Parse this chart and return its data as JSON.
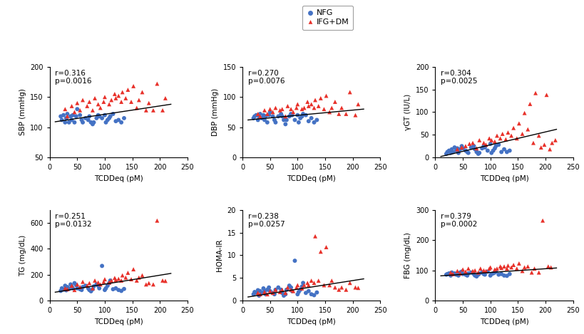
{
  "legend_labels": [
    "NFG",
    "IFG+DM"
  ],
  "nfg_color": "#4472C4",
  "ifg_color": "#E8312A",
  "xlabel": "TCDDeq (pM)",
  "subplots": [
    {
      "ylabel": "SBP (mmHg)",
      "r_str": "r=0.316",
      "p_str": "p=0.0016",
      "ylim": [
        50,
        200
      ],
      "yticks": [
        50,
        100,
        150,
        200
      ],
      "xlim": [
        0,
        250
      ],
      "xticks": [
        0,
        50,
        100,
        150,
        200,
        250
      ],
      "nfg_x": [
        20,
        22,
        25,
        28,
        30,
        32,
        35,
        38,
        40,
        42,
        45,
        48,
        50,
        55,
        58,
        60,
        65,
        70,
        72,
        75,
        78,
        80,
        85,
        88,
        90,
        95,
        100,
        102,
        105,
        108,
        110,
        115,
        120,
        125,
        130,
        135
      ],
      "nfg_y": [
        118,
        112,
        120,
        108,
        115,
        122,
        108,
        118,
        112,
        120,
        108,
        118,
        130,
        120,
        112,
        108,
        115,
        112,
        118,
        108,
        105,
        108,
        115,
        120,
        118,
        115,
        120,
        108,
        112,
        115,
        118,
        122,
        110,
        112,
        108,
        115
      ],
      "ifg_x": [
        28,
        32,
        40,
        45,
        50,
        55,
        60,
        68,
        72,
        78,
        82,
        88,
        92,
        98,
        100,
        108,
        112,
        118,
        120,
        125,
        130,
        132,
        138,
        142,
        148,
        152,
        158,
        162,
        168,
        175,
        180,
        188,
        195,
        205,
        210
      ],
      "ifg_y": [
        130,
        118,
        135,
        125,
        140,
        128,
        145,
        135,
        142,
        128,
        148,
        138,
        132,
        142,
        150,
        138,
        145,
        155,
        148,
        152,
        142,
        158,
        148,
        162,
        142,
        168,
        132,
        145,
        158,
        128,
        140,
        128,
        172,
        128,
        148
      ],
      "fit_x": [
        10,
        220
      ],
      "fit_y": [
        109,
        138
      ]
    },
    {
      "ylabel": "DBP (mmHg)",
      "r_str": "r=0.270",
      "p_str": "p=0.0076",
      "ylim": [
        0,
        150
      ],
      "yticks": [
        0,
        50,
        100,
        150
      ],
      "xlim": [
        0,
        250
      ],
      "xticks": [
        0,
        50,
        100,
        150,
        200,
        250
      ],
      "nfg_x": [
        20,
        22,
        25,
        28,
        30,
        32,
        35,
        38,
        40,
        42,
        45,
        48,
        50,
        55,
        58,
        60,
        65,
        70,
        72,
        75,
        78,
        80,
        85,
        88,
        90,
        95,
        100,
        102,
        105,
        108,
        110,
        115,
        120,
        125,
        130,
        135
      ],
      "nfg_y": [
        65,
        68,
        70,
        62,
        68,
        72,
        65,
        70,
        62,
        68,
        58,
        70,
        75,
        68,
        62,
        58,
        68,
        72,
        68,
        62,
        55,
        62,
        68,
        72,
        70,
        62,
        70,
        58,
        65,
        68,
        72,
        70,
        60,
        65,
        58,
        62
      ],
      "ifg_x": [
        28,
        32,
        40,
        45,
        50,
        55,
        60,
        68,
        72,
        78,
        82,
        88,
        92,
        98,
        100,
        108,
        112,
        118,
        120,
        125,
        130,
        132,
        138,
        142,
        148,
        152,
        158,
        162,
        168,
        175,
        180,
        188,
        195,
        205,
        210
      ],
      "ifg_y": [
        72,
        68,
        78,
        72,
        80,
        75,
        82,
        78,
        80,
        68,
        85,
        80,
        75,
        82,
        88,
        80,
        82,
        92,
        85,
        88,
        82,
        95,
        85,
        98,
        80,
        102,
        75,
        82,
        92,
        72,
        82,
        72,
        108,
        70,
        88
      ],
      "fit_x": [
        10,
        220
      ],
      "fit_y": [
        62,
        80
      ]
    },
    {
      "ylabel": "γGT (IU/L)",
      "r_str": "r=0.304",
      "p_str": "p=0.0025",
      "ylim": [
        0,
        200
      ],
      "yticks": [
        0,
        50,
        100,
        150,
        200
      ],
      "xlim": [
        0,
        250
      ],
      "xticks": [
        0,
        50,
        100,
        150,
        200,
        250
      ],
      "nfg_x": [
        20,
        22,
        25,
        28,
        30,
        32,
        35,
        38,
        40,
        42,
        45,
        48,
        50,
        55,
        58,
        60,
        65,
        70,
        72,
        75,
        78,
        80,
        85,
        88,
        90,
        95,
        100,
        102,
        105,
        108,
        110,
        115,
        120,
        125,
        130,
        135
      ],
      "nfg_y": [
        8,
        12,
        15,
        10,
        18,
        12,
        22,
        15,
        20,
        10,
        18,
        25,
        20,
        15,
        12,
        10,
        22,
        25,
        18,
        12,
        8,
        10,
        20,
        25,
        22,
        15,
        30,
        10,
        15,
        20,
        25,
        28,
        12,
        18,
        12,
        15
      ],
      "ifg_x": [
        40,
        48,
        55,
        62,
        68,
        75,
        80,
        88,
        92,
        98,
        102,
        108,
        112,
        118,
        122,
        128,
        132,
        138,
        142,
        148,
        152,
        158,
        162,
        168,
        172,
        178,
        182,
        188,
        192,
        198,
        202,
        208,
        212,
        218
      ],
      "ifg_y": [
        18,
        22,
        25,
        30,
        32,
        20,
        38,
        32,
        28,
        42,
        38,
        35,
        48,
        42,
        52,
        40,
        55,
        48,
        65,
        42,
        75,
        52,
        98,
        62,
        118,
        32,
        142,
        48,
        22,
        28,
        138,
        18,
        32,
        38
      ],
      "fit_x": [
        10,
        220
      ],
      "fit_y": [
        2,
        62
      ]
    },
    {
      "ylabel": "TG (mg/dL)",
      "r_str": "r=0.251",
      "p_str": "p=0.0132",
      "ylim": [
        0,
        700
      ],
      "yticks": [
        0,
        200,
        400,
        600
      ],
      "xlim": [
        0,
        250
      ],
      "xticks": [
        0,
        50,
        100,
        150,
        200,
        250
      ],
      "nfg_x": [
        20,
        22,
        25,
        28,
        30,
        32,
        35,
        38,
        40,
        42,
        45,
        48,
        50,
        55,
        58,
        60,
        65,
        70,
        72,
        75,
        78,
        80,
        85,
        88,
        90,
        95,
        100,
        102,
        105,
        108,
        110,
        115,
        120,
        125,
        130,
        135
      ],
      "nfg_y": [
        75,
        95,
        85,
        115,
        80,
        105,
        90,
        125,
        110,
        95,
        135,
        120,
        95,
        88,
        82,
        105,
        115,
        95,
        82,
        72,
        88,
        110,
        125,
        115,
        95,
        268,
        82,
        95,
        115,
        135,
        155,
        88,
        95,
        82,
        75,
        90
      ],
      "ifg_x": [
        28,
        32,
        40,
        45,
        50,
        55,
        60,
        68,
        72,
        78,
        82,
        88,
        92,
        98,
        100,
        108,
        112,
        118,
        120,
        125,
        130,
        132,
        138,
        142,
        148,
        152,
        158,
        162,
        168,
        175,
        180,
        188,
        195,
        205,
        210
      ],
      "ifg_y": [
        95,
        88,
        115,
        82,
        125,
        105,
        145,
        115,
        135,
        95,
        155,
        140,
        125,
        145,
        165,
        140,
        155,
        175,
        160,
        168,
        155,
        195,
        178,
        215,
        165,
        242,
        155,
        178,
        195,
        125,
        135,
        125,
        618,
        155,
        152
      ],
      "fit_x": [
        10,
        220
      ],
      "fit_y": [
        65,
        210
      ]
    },
    {
      "ylabel": "HOMA-IR",
      "r_str": "r=0.238",
      "p_str": "p=0.0257",
      "ylim": [
        0,
        20
      ],
      "yticks": [
        0,
        5,
        10,
        15,
        20
      ],
      "xlim": [
        0,
        250
      ],
      "xticks": [
        0,
        50,
        100,
        150,
        200,
        250
      ],
      "nfg_x": [
        20,
        22,
        25,
        28,
        30,
        32,
        35,
        38,
        40,
        42,
        45,
        48,
        50,
        55,
        58,
        60,
        65,
        70,
        72,
        75,
        78,
        80,
        85,
        88,
        90,
        95,
        100,
        102,
        105,
        108,
        110,
        115,
        120,
        125,
        130,
        135
      ],
      "nfg_y": [
        1.4,
        1.9,
        1.7,
        2.3,
        1.1,
        2.1,
        1.7,
        2.7,
        2.1,
        1.4,
        2.4,
        2.9,
        2.1,
        1.7,
        1.4,
        2.4,
        2.9,
        2.4,
        1.7,
        1.1,
        1.4,
        2.4,
        3.3,
        2.9,
        2.1,
        8.8,
        1.4,
        1.9,
        2.4,
        3.1,
        3.9,
        1.7,
        2.1,
        1.4,
        1.2,
        1.8
      ],
      "ifg_x": [
        28,
        32,
        40,
        45,
        50,
        55,
        60,
        68,
        72,
        78,
        82,
        88,
        92,
        98,
        100,
        108,
        112,
        118,
        120,
        125,
        130,
        132,
        138,
        142,
        148,
        152,
        158,
        162,
        168,
        175,
        180,
        188,
        195,
        205,
        210
      ],
      "ifg_y": [
        1.7,
        1.4,
        1.9,
        1.4,
        2.1,
        1.7,
        2.4,
        1.9,
        2.4,
        1.7,
        2.9,
        2.4,
        2.1,
        2.9,
        3.4,
        2.7,
        3.4,
        3.9,
        3.4,
        4.4,
        3.9,
        14.2,
        4.4,
        10.8,
        3.4,
        11.8,
        3.4,
        4.4,
        2.9,
        2.4,
        2.9,
        2.4,
        3.9,
        2.9,
        2.8
      ],
      "fit_x": [
        10,
        220
      ],
      "fit_y": [
        0.8,
        4.8
      ]
    },
    {
      "ylabel": "FBG (mg/dL)",
      "r_str": "r=0.379",
      "p_str": "p=0.0002",
      "ylim": [
        0,
        300
      ],
      "yticks": [
        0,
        100,
        200,
        300
      ],
      "xlim": [
        0,
        250
      ],
      "xticks": [
        0,
        50,
        100,
        150,
        200,
        250
      ],
      "nfg_x": [
        20,
        22,
        25,
        28,
        30,
        32,
        35,
        38,
        40,
        42,
        45,
        48,
        50,
        55,
        58,
        60,
        65,
        70,
        72,
        75,
        78,
        80,
        85,
        88,
        90,
        95,
        100,
        102,
        105,
        108,
        110,
        115,
        120,
        125,
        130,
        135
      ],
      "nfg_y": [
        86,
        88,
        90,
        83,
        93,
        88,
        90,
        86,
        88,
        83,
        93,
        96,
        88,
        86,
        83,
        90,
        93,
        88,
        83,
        80,
        86,
        90,
        93,
        88,
        86,
        96,
        83,
        88,
        90,
        93,
        96,
        86,
        88,
        83,
        82,
        88
      ],
      "ifg_x": [
        28,
        32,
        40,
        45,
        50,
        55,
        60,
        68,
        72,
        78,
        82,
        88,
        92,
        98,
        100,
        108,
        112,
        118,
        120,
        125,
        130,
        132,
        138,
        142,
        148,
        152,
        158,
        162,
        168,
        175,
        180,
        188,
        195,
        205,
        210
      ],
      "ifg_y": [
        93,
        88,
        98,
        90,
        103,
        96,
        106,
        98,
        100,
        93,
        106,
        100,
        98,
        106,
        110,
        103,
        106,
        113,
        108,
        113,
        106,
        116,
        110,
        118,
        106,
        123,
        98,
        110,
        113,
        93,
        106,
        93,
        265,
        113,
        110
      ],
      "fit_x": [
        10,
        220
      ],
      "fit_y": [
        82,
        108
      ]
    }
  ]
}
